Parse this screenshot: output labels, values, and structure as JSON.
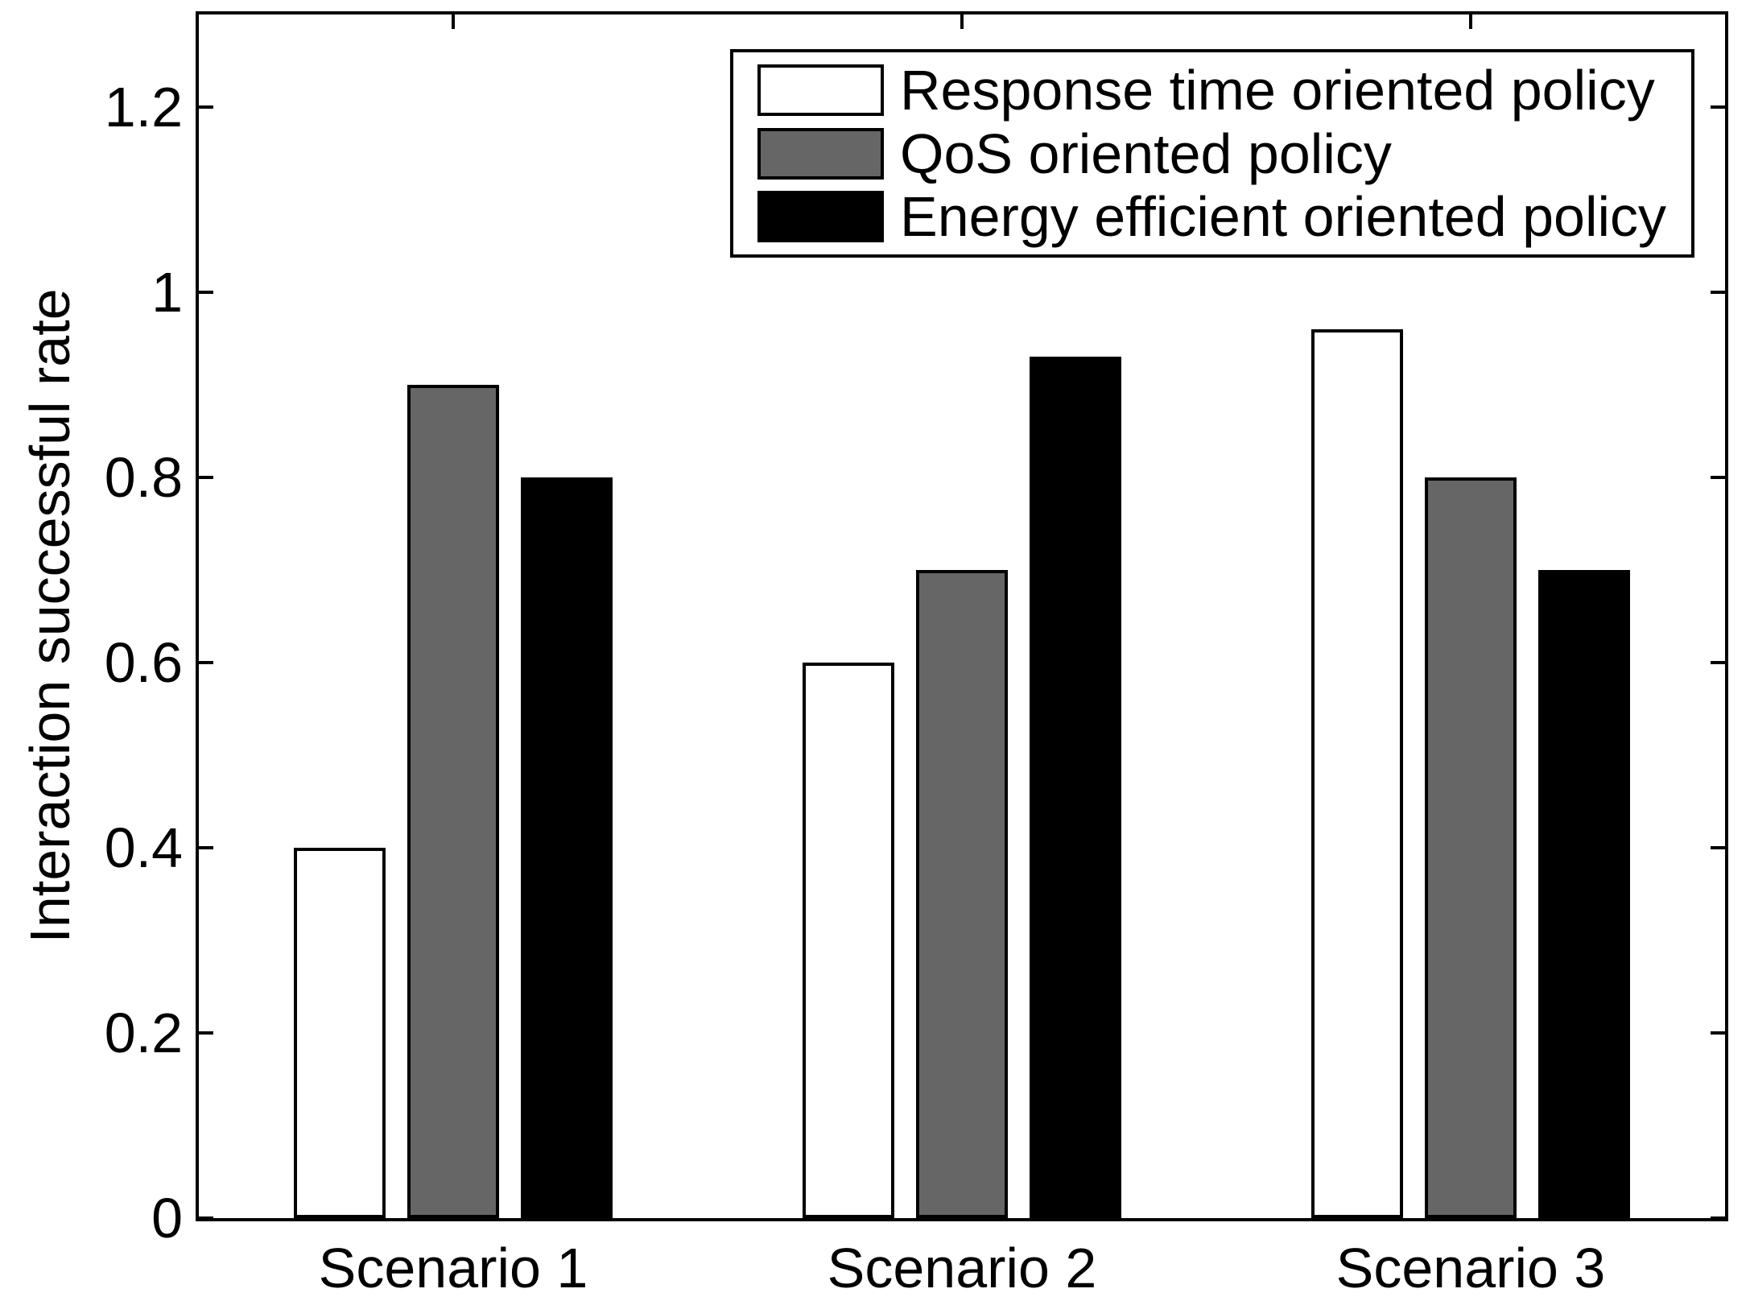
{
  "chart_data": {
    "type": "bar",
    "title": "",
    "xlabel": "",
    "ylabel": "Interaction successful rate",
    "categories": [
      "Scenario 1",
      "Scenario 2",
      "Scenario 3"
    ],
    "series": [
      {
        "name": "Response time oriented policy",
        "color": "#ffffff",
        "values": [
          0.4,
          0.6,
          0.96
        ]
      },
      {
        "name": "QoS oriented policy",
        "color": "#666666",
        "values": [
          0.9,
          0.7,
          0.8
        ]
      },
      {
        "name": "Energy efficient oriented policy",
        "color": "#000000",
        "values": [
          0.8,
          0.93,
          0.7
        ]
      }
    ],
    "ylim": [
      0,
      1.3
    ],
    "yticks": [
      0,
      0.2,
      0.4,
      0.6,
      0.8,
      1,
      1.2
    ],
    "ytick_labels": [
      "0",
      "0.2",
      "0.4",
      "0.6",
      "0.8",
      "1",
      "1.2"
    ],
    "grid": false,
    "legend_position": "top-right",
    "bar_edge_color": "#000000",
    "axis_color": "#000000",
    "background_color": "#ffffff"
  }
}
